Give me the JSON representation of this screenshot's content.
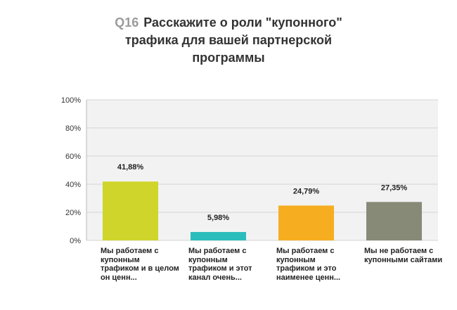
{
  "question": {
    "number": "Q16",
    "text": "Расскажите о роли \"купонного\" трафика для вашей партнерской программы"
  },
  "chart_data": {
    "type": "bar",
    "title": "Q16 Расскажите о роли \"купонного\" трафика для вашей партнерской программы",
    "xlabel": "",
    "ylabel": "",
    "ylim": [
      0,
      100
    ],
    "yticks": [
      "0%",
      "20%",
      "40%",
      "60%",
      "80%",
      "100%"
    ],
    "grid": true,
    "categories": [
      "Мы работаем с купонным трафиком и в целом он ценн...",
      "Мы работаем с купонным трафиком и этот канал очень...",
      "Мы работаем с купонным трафиком и это наименее ценн...",
      "Мы не работаем с купонными сайтами"
    ],
    "values": [
      41.88,
      5.98,
      24.79,
      27.35
    ],
    "value_labels": [
      "41,88%",
      "5,98%",
      "24,79%",
      "27,35%"
    ],
    "colors": [
      "#cfd52a",
      "#2bbdbb",
      "#f6ae20",
      "#888a78"
    ]
  }
}
